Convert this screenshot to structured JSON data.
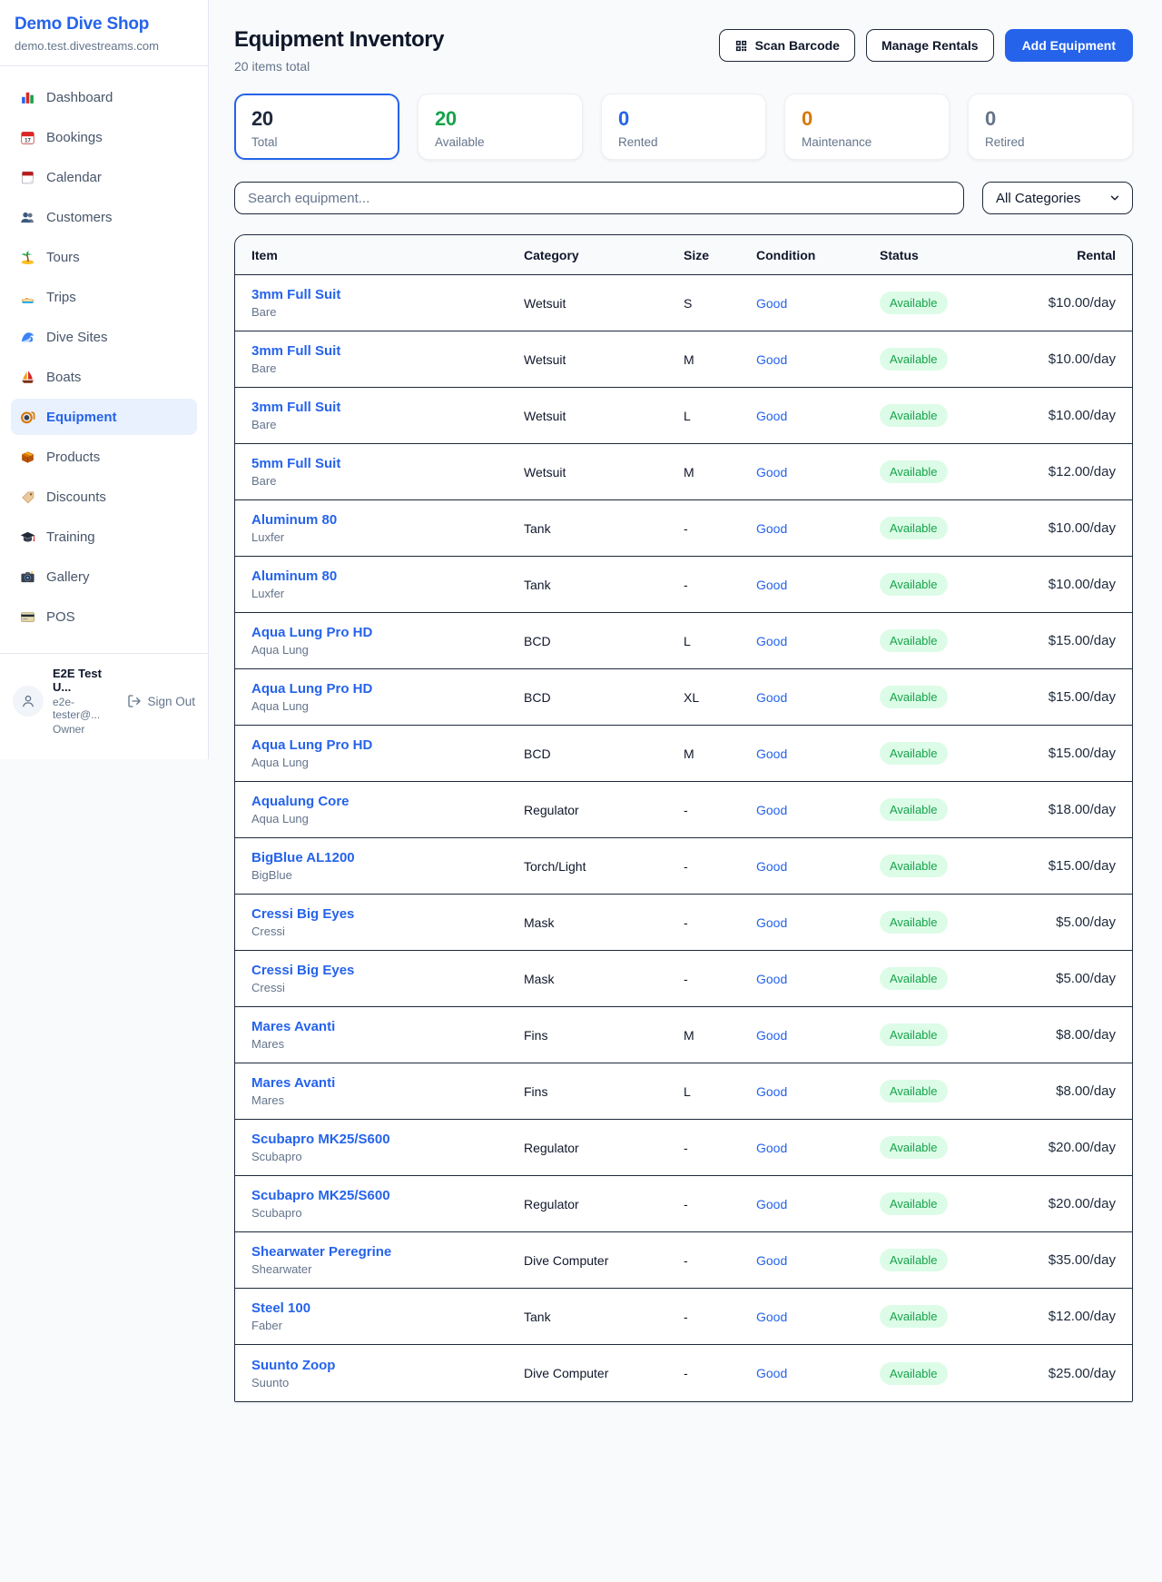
{
  "sidebar": {
    "brand": "Demo Dive Shop",
    "domain": "demo.test.divestreams.com",
    "items": [
      {
        "label": "Dashboard",
        "icon": "dashboard-icon",
        "active": false
      },
      {
        "label": "Bookings",
        "icon": "bookings-calendar-icon",
        "active": false
      },
      {
        "label": "Calendar",
        "icon": "calendar-icon",
        "active": false
      },
      {
        "label": "Customers",
        "icon": "customers-icon",
        "active": false
      },
      {
        "label": "Tours",
        "icon": "palm-island-icon",
        "active": false
      },
      {
        "label": "Trips",
        "icon": "speedboat-icon",
        "active": false
      },
      {
        "label": "Dive Sites",
        "icon": "wave-icon",
        "active": false
      },
      {
        "label": "Boats",
        "icon": "sailboat-icon",
        "active": false
      },
      {
        "label": "Equipment",
        "icon": "dive-mask-icon",
        "active": true
      },
      {
        "label": "Products",
        "icon": "package-icon",
        "active": false
      },
      {
        "label": "Discounts",
        "icon": "tag-icon",
        "active": false
      },
      {
        "label": "Training",
        "icon": "graduation-cap-icon",
        "active": false
      },
      {
        "label": "Gallery",
        "icon": "camera-icon",
        "active": false
      },
      {
        "label": "POS",
        "icon": "credit-card-icon",
        "active": false
      }
    ],
    "user": {
      "name": "E2E Test U...",
      "email": "e2e-tester@...",
      "role": "Owner",
      "signout_label": "Sign Out"
    }
  },
  "header": {
    "title": "Equipment Inventory",
    "subtitle": "20 items total",
    "buttons": {
      "scan": "Scan Barcode",
      "manage": "Manage Rentals",
      "add": "Add Equipment"
    }
  },
  "stats": [
    {
      "value": "20",
      "label": "Total",
      "color": "#1e293b",
      "selected": true
    },
    {
      "value": "20",
      "label": "Available",
      "color": "#16a34a",
      "selected": false
    },
    {
      "value": "0",
      "label": "Rented",
      "color": "#2563eb",
      "selected": false
    },
    {
      "value": "0",
      "label": "Maintenance",
      "color": "#d97706",
      "selected": false
    },
    {
      "value": "0",
      "label": "Retired",
      "color": "#64748b",
      "selected": false
    }
  ],
  "filters": {
    "search_placeholder": "Search equipment...",
    "category_selected": "All Categories"
  },
  "table": {
    "columns": [
      "Item",
      "Category",
      "Size",
      "Condition",
      "Status",
      "Rental"
    ],
    "rows": [
      {
        "name": "3mm Full Suit",
        "brand": "Bare",
        "category": "Wetsuit",
        "size": "S",
        "condition": "Good",
        "status": "Available",
        "rental": "$10.00/day"
      },
      {
        "name": "3mm Full Suit",
        "brand": "Bare",
        "category": "Wetsuit",
        "size": "M",
        "condition": "Good",
        "status": "Available",
        "rental": "$10.00/day"
      },
      {
        "name": "3mm Full Suit",
        "brand": "Bare",
        "category": "Wetsuit",
        "size": "L",
        "condition": "Good",
        "status": "Available",
        "rental": "$10.00/day"
      },
      {
        "name": "5mm Full Suit",
        "brand": "Bare",
        "category": "Wetsuit",
        "size": "M",
        "condition": "Good",
        "status": "Available",
        "rental": "$12.00/day"
      },
      {
        "name": "Aluminum 80",
        "brand": "Luxfer",
        "category": "Tank",
        "size": "-",
        "condition": "Good",
        "status": "Available",
        "rental": "$10.00/day"
      },
      {
        "name": "Aluminum 80",
        "brand": "Luxfer",
        "category": "Tank",
        "size": "-",
        "condition": "Good",
        "status": "Available",
        "rental": "$10.00/day"
      },
      {
        "name": "Aqua Lung Pro HD",
        "brand": "Aqua Lung",
        "category": "BCD",
        "size": "L",
        "condition": "Good",
        "status": "Available",
        "rental": "$15.00/day"
      },
      {
        "name": "Aqua Lung Pro HD",
        "brand": "Aqua Lung",
        "category": "BCD",
        "size": "XL",
        "condition": "Good",
        "status": "Available",
        "rental": "$15.00/day"
      },
      {
        "name": "Aqua Lung Pro HD",
        "brand": "Aqua Lung",
        "category": "BCD",
        "size": "M",
        "condition": "Good",
        "status": "Available",
        "rental": "$15.00/day"
      },
      {
        "name": "Aqualung Core",
        "brand": "Aqua Lung",
        "category": "Regulator",
        "size": "-",
        "condition": "Good",
        "status": "Available",
        "rental": "$18.00/day"
      },
      {
        "name": "BigBlue AL1200",
        "brand": "BigBlue",
        "category": "Torch/Light",
        "size": "-",
        "condition": "Good",
        "status": "Available",
        "rental": "$15.00/day"
      },
      {
        "name": "Cressi Big Eyes",
        "brand": "Cressi",
        "category": "Mask",
        "size": "-",
        "condition": "Good",
        "status": "Available",
        "rental": "$5.00/day"
      },
      {
        "name": "Cressi Big Eyes",
        "brand": "Cressi",
        "category": "Mask",
        "size": "-",
        "condition": "Good",
        "status": "Available",
        "rental": "$5.00/day"
      },
      {
        "name": "Mares Avanti",
        "brand": "Mares",
        "category": "Fins",
        "size": "M",
        "condition": "Good",
        "status": "Available",
        "rental": "$8.00/day"
      },
      {
        "name": "Mares Avanti",
        "brand": "Mares",
        "category": "Fins",
        "size": "L",
        "condition": "Good",
        "status": "Available",
        "rental": "$8.00/day"
      },
      {
        "name": "Scubapro MK25/S600",
        "brand": "Scubapro",
        "category": "Regulator",
        "size": "-",
        "condition": "Good",
        "status": "Available",
        "rental": "$20.00/day"
      },
      {
        "name": "Scubapro MK25/S600",
        "brand": "Scubapro",
        "category": "Regulator",
        "size": "-",
        "condition": "Good",
        "status": "Available",
        "rental": "$20.00/day"
      },
      {
        "name": "Shearwater Peregrine",
        "brand": "Shearwater",
        "category": "Dive Computer",
        "size": "-",
        "condition": "Good",
        "status": "Available",
        "rental": "$35.00/day"
      },
      {
        "name": "Steel 100",
        "brand": "Faber",
        "category": "Tank",
        "size": "-",
        "condition": "Good",
        "status": "Available",
        "rental": "$12.00/day"
      },
      {
        "name": "Suunto Zoop",
        "brand": "Suunto",
        "category": "Dive Computer",
        "size": "-",
        "condition": "Good",
        "status": "Available",
        "rental": "$25.00/day"
      }
    ]
  },
  "colors": {
    "accent": "#2563eb",
    "link": "#2563eb",
    "available_green": "#16a34a",
    "status_pill_bg": "#dcfce7",
    "maintenance_orange": "#d97706",
    "retired_gray": "#64748b",
    "text_dark": "#0f172a",
    "border_dark": "#1e293b",
    "page_bg": "#f8fafc"
  }
}
